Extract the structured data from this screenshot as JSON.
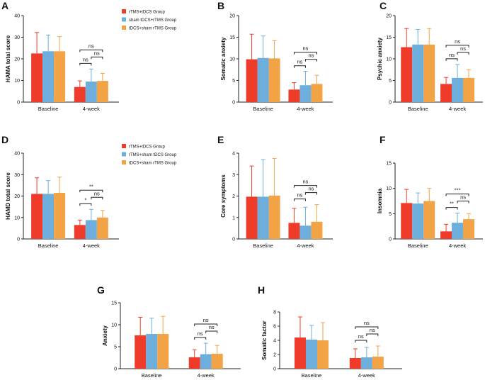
{
  "colors": {
    "red": "#EE3B2A",
    "blue": "#6DAEDC",
    "orange": "#F2A346"
  },
  "legends": [
    {
      "entries": [
        {
          "label": "rTMS+tDCS Group",
          "color": "#EE3B2A"
        },
        {
          "label": "sham tDCS+rTMS Group",
          "color": "#6DAEDC"
        },
        {
          "label": "tDCS+sham rTMS Group",
          "color": "#F2A346"
        }
      ]
    },
    {
      "entries": [
        {
          "label": "rTMS+tDCS Group",
          "color": "#EE3B2A"
        },
        {
          "label": "rTMS+sham tDCS Group",
          "color": "#6DAEDC"
        },
        {
          "label": "tDCS+sham rTMS Group",
          "color": "#F2A346"
        }
      ]
    }
  ],
  "chart_data": [
    {
      "letter": "A",
      "type": "bar",
      "ylabel": "HAMA total score",
      "ylim": [
        0,
        40
      ],
      "yticks": [
        0,
        10,
        20,
        30,
        40
      ],
      "categories": [
        "Baseline",
        "4-week"
      ],
      "series": [
        {
          "name": "rTMS+tDCS Group",
          "values": [
            22.5,
            7.0
          ],
          "errors": [
            9.7,
            2.8
          ]
        },
        {
          "name": "sham tDCS+rTMS Group",
          "values": [
            23.5,
            9.5
          ],
          "errors": [
            7.5,
            5.8
          ]
        },
        {
          "name": "tDCS+sham rTMS Group",
          "values": [
            23.5,
            9.8
          ],
          "errors": [
            6.8,
            3.5
          ]
        }
      ],
      "significance": [
        {
          "text": "ns",
          "from": 0,
          "to": 1
        },
        {
          "text": "ns",
          "from": 1,
          "to": 2
        },
        {
          "text": "ns",
          "from": 0,
          "to": 2
        }
      ]
    },
    {
      "letter": "B",
      "type": "bar",
      "ylabel": "Somatic anxiety",
      "ylim": [
        0,
        20
      ],
      "yticks": [
        0,
        5,
        10,
        15,
        20
      ],
      "categories": [
        "Baseline",
        "4-week"
      ],
      "series": [
        {
          "name": "rTMS+tDCS Group",
          "values": [
            9.9,
            2.9
          ],
          "errors": [
            5.8,
            1.6
          ]
        },
        {
          "name": "sham tDCS+rTMS Group",
          "values": [
            10.2,
            3.9
          ],
          "errors": [
            5.1,
            3.2
          ]
        },
        {
          "name": "tDCS+sham rTMS Group",
          "values": [
            10.1,
            4.2
          ],
          "errors": [
            4.1,
            2.0
          ]
        }
      ],
      "significance": [
        {
          "text": "ns",
          "from": 0,
          "to": 1
        },
        {
          "text": "ns",
          "from": 1,
          "to": 2
        },
        {
          "text": "ns",
          "from": 0,
          "to": 2
        }
      ]
    },
    {
      "letter": "C",
      "type": "bar",
      "ylabel": "Psychic anxiety",
      "ylim": [
        0,
        20
      ],
      "yticks": [
        0,
        5,
        10,
        15,
        20
      ],
      "categories": [
        "Baseline",
        "4-week"
      ],
      "series": [
        {
          "name": "rTMS+tDCS Group",
          "values": [
            12.7,
            4.2
          ],
          "errors": [
            4.3,
            1.5
          ]
        },
        {
          "name": "sham tDCS+rTMS Group",
          "values": [
            13.3,
            5.6
          ],
          "errors": [
            3.5,
            3.1
          ]
        },
        {
          "name": "tDCS+sham rTMS Group",
          "values": [
            13.3,
            5.6
          ],
          "errors": [
            3.7,
            1.9
          ]
        }
      ],
      "significance": [
        {
          "text": "ns",
          "from": 0,
          "to": 1
        },
        {
          "text": "ns",
          "from": 1,
          "to": 2
        },
        {
          "text": "ns",
          "from": 0,
          "to": 2
        }
      ]
    },
    {
      "letter": "D",
      "type": "bar",
      "ylabel": "HAMD total score",
      "ylim": [
        0,
        40
      ],
      "yticks": [
        0,
        10,
        20,
        30,
        40
      ],
      "categories": [
        "Baseline",
        "4-week"
      ],
      "series": [
        {
          "name": "rTMS+tDCS Group",
          "values": [
            21.0,
            6.5
          ],
          "errors": [
            7.5,
            2.3
          ]
        },
        {
          "name": "rTMS+sham tDCS Group",
          "values": [
            21.0,
            8.8
          ],
          "errors": [
            6.2,
            5.0
          ]
        },
        {
          "name": "tDCS+sham rTMS Group",
          "values": [
            21.5,
            10.0
          ],
          "errors": [
            7.3,
            3.3
          ]
        }
      ],
      "significance": [
        {
          "text": "*",
          "from": 0,
          "to": 1
        },
        {
          "text": "ns",
          "from": 1,
          "to": 2
        },
        {
          "text": "**",
          "from": 0,
          "to": 2
        }
      ]
    },
    {
      "letter": "E",
      "type": "bar",
      "ylabel": "Core symptoms",
      "ylim": [
        0,
        4
      ],
      "yticks": [
        0,
        1,
        2,
        3,
        4
      ],
      "categories": [
        "Baseline",
        "4-week"
      ],
      "series": [
        {
          "name": "rTMS+tDCS Group",
          "values": [
            1.97,
            0.75
          ],
          "errors": [
            1.43,
            0.68
          ]
        },
        {
          "name": "rTMS+sham tDCS Group",
          "values": [
            1.97,
            0.62
          ],
          "errors": [
            1.73,
            0.86
          ]
        },
        {
          "name": "tDCS+sham rTMS Group",
          "values": [
            2.02,
            0.8
          ],
          "errors": [
            1.73,
            0.8
          ]
        }
      ],
      "significance": [
        {
          "text": "ns",
          "from": 0,
          "to": 1
        },
        {
          "text": "ns",
          "from": 1,
          "to": 2
        },
        {
          "text": "ns",
          "from": 0,
          "to": 2
        }
      ]
    },
    {
      "letter": "F",
      "type": "bar",
      "ylabel": "Insomnia",
      "ylim": [
        0,
        15
      ],
      "yticks": [
        0,
        5,
        10,
        15
      ],
      "categories": [
        "Baseline",
        "4-week"
      ],
      "series": [
        {
          "name": "rTMS+tDCS Group",
          "values": [
            7.1,
            1.5
          ],
          "errors": [
            2.7,
            1.4
          ]
        },
        {
          "name": "rTMS+sham tDCS Group",
          "values": [
            7.0,
            3.2
          ],
          "errors": [
            2.1,
            1.9
          ]
        },
        {
          "name": "tDCS+sham rTMS Group",
          "values": [
            7.5,
            3.9
          ],
          "errors": [
            2.5,
            1.1
          ]
        }
      ],
      "significance": [
        {
          "text": "**",
          "from": 0,
          "to": 1
        },
        {
          "text": "ns",
          "from": 1,
          "to": 2
        },
        {
          "text": "***",
          "from": 0,
          "to": 2
        }
      ]
    },
    {
      "letter": "G",
      "type": "bar",
      "ylabel": "Anxiety",
      "ylim": [
        0,
        15
      ],
      "yticks": [
        0,
        5,
        10,
        15
      ],
      "categories": [
        "Baseline",
        "4-week"
      ],
      "series": [
        {
          "name": "rTMS+tDCS Group",
          "values": [
            7.6,
            2.6
          ],
          "errors": [
            4.1,
            1.7
          ]
        },
        {
          "name": "rTMS+sham tDCS Group",
          "values": [
            7.9,
            3.3
          ],
          "errors": [
            3.6,
            2.5
          ]
        },
        {
          "name": "tDCS+sham rTMS Group",
          "values": [
            7.9,
            3.4
          ],
          "errors": [
            4.0,
            1.9
          ]
        }
      ],
      "significance": [
        {
          "text": "ns",
          "from": 0,
          "to": 1
        },
        {
          "text": "ns",
          "from": 1,
          "to": 2
        },
        {
          "text": "ns",
          "from": 0,
          "to": 2
        }
      ]
    },
    {
      "letter": "H",
      "type": "bar",
      "ylabel": "Somatic factor",
      "ylim": [
        0,
        8
      ],
      "yticks": [
        0,
        2,
        4,
        6,
        8
      ],
      "categories": [
        "Baseline",
        "4-week"
      ],
      "series": [
        {
          "name": "rTMS+tDCS Group",
          "values": [
            4.4,
            1.5
          ],
          "errors": [
            2.9,
            1.3
          ]
        },
        {
          "name": "rTMS+sham tDCS Group",
          "values": [
            4.1,
            1.6
          ],
          "errors": [
            2.0,
            1.4
          ]
        },
        {
          "name": "tDCS+sham rTMS Group",
          "values": [
            4.0,
            1.7
          ],
          "errors": [
            2.5,
            1.5
          ]
        }
      ],
      "significance": [
        {
          "text": "ns",
          "from": 0,
          "to": 1
        },
        {
          "text": "ns",
          "from": 1,
          "to": 2
        },
        {
          "text": "ns",
          "from": 0,
          "to": 2
        }
      ]
    }
  ]
}
